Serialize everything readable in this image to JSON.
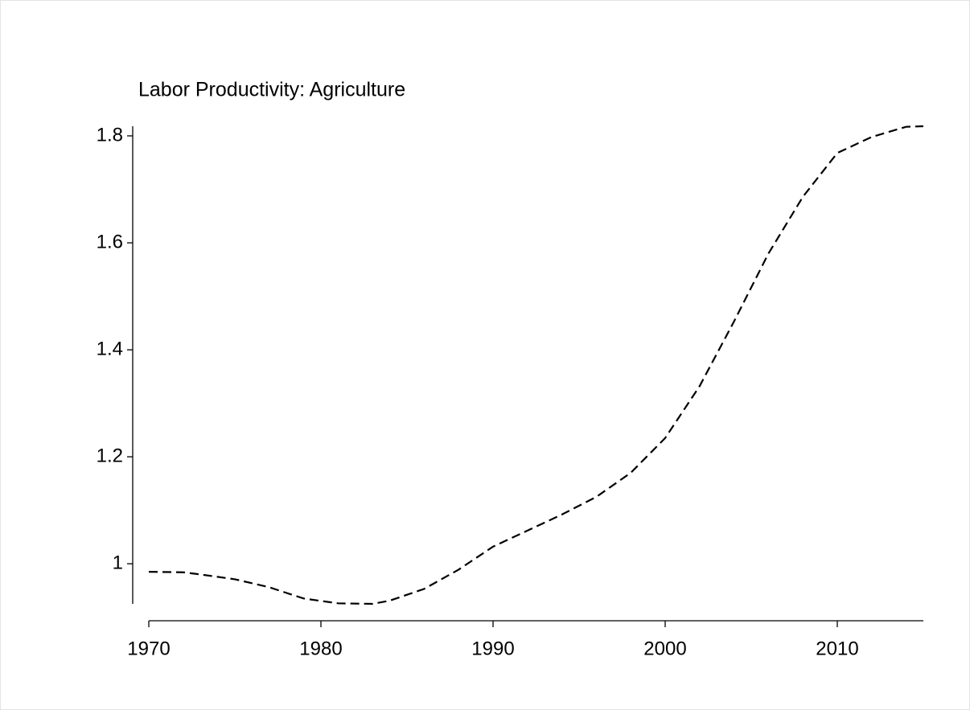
{
  "chart_data": {
    "type": "line",
    "title": "Labor Productivity: Agriculture",
    "x": [
      1970,
      1972,
      1973,
      1975,
      1977,
      1979,
      1981,
      1983,
      1984,
      1986,
      1988,
      1990,
      1992,
      1994,
      1996,
      1998,
      2000,
      2002,
      2004,
      2006,
      2008,
      2010,
      2012,
      2014,
      2015
    ],
    "values": [
      0.985,
      0.984,
      0.98,
      0.971,
      0.956,
      0.935,
      0.926,
      0.925,
      0.931,
      0.953,
      0.989,
      1.032,
      1.062,
      1.092,
      1.125,
      1.17,
      1.235,
      1.332,
      1.453,
      1.58,
      1.686,
      1.768,
      1.798,
      1.817,
      1.818
    ],
    "color": "#000000",
    "xlim": [
      1970,
      2015
    ],
    "xticks": [
      1970,
      1980,
      1990,
      2000,
      2010
    ],
    "ylim": [
      0.925,
      1.818
    ],
    "yticks": [
      {
        "value": 1,
        "label": "1"
      },
      1.2,
      1.4,
      1.6,
      1.8
    ]
  }
}
